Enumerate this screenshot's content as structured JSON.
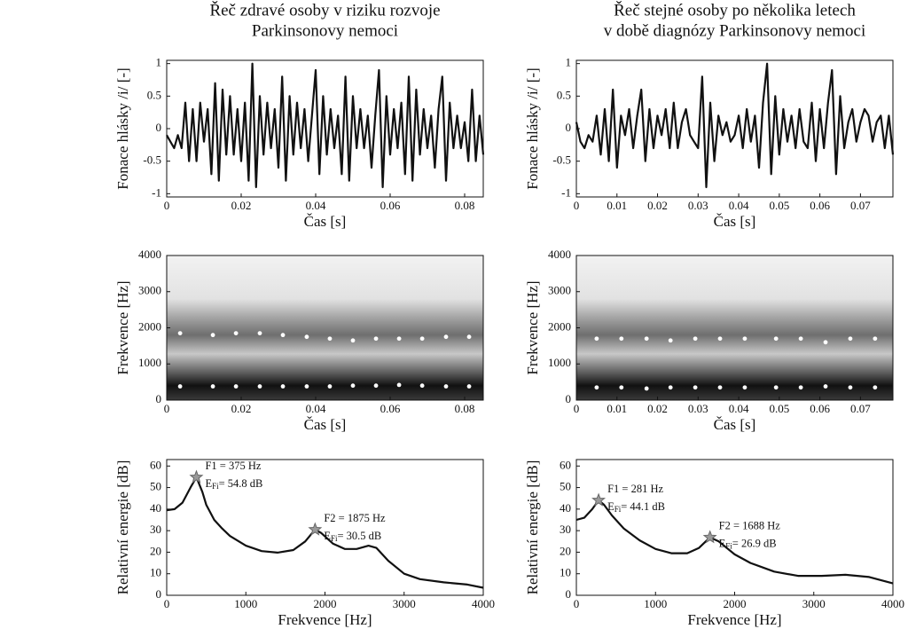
{
  "chart_data": [
    {
      "type": "line",
      "title": [
        "Řeč zdravé osoby v riziku rozvoje",
        "Parkinsonovy nemoci"
      ],
      "x_label": "Čas [s]",
      "y_label": "Fonace hlásky /i/ [-]",
      "xlim": [
        0,
        0.085
      ],
      "ylim": [
        -1.05,
        1.05
      ],
      "xticks": [
        0,
        0.02,
        0.04,
        0.06,
        0.08
      ],
      "yticks": [
        -1,
        -0.5,
        0,
        0.5,
        1
      ],
      "series": [
        {
          "color": "#111111",
          "x": [
            0,
            0.001,
            0.002,
            0.003,
            0.004,
            0.005,
            0.006,
            0.007,
            0.008,
            0.009,
            0.01,
            0.011,
            0.012,
            0.013,
            0.014,
            0.015,
            0.016,
            0.017,
            0.018,
            0.019,
            0.02,
            0.021,
            0.022,
            0.023,
            0.024,
            0.025,
            0.026,
            0.027,
            0.028,
            0.029,
            0.03,
            0.031,
            0.032,
            0.033,
            0.034,
            0.035,
            0.036,
            0.037,
            0.038,
            0.039,
            0.04,
            0.041,
            0.042,
            0.043,
            0.044,
            0.045,
            0.046,
            0.047,
            0.048,
            0.049,
            0.05,
            0.051,
            0.052,
            0.053,
            0.054,
            0.055,
            0.056,
            0.057,
            0.058,
            0.059,
            0.06,
            0.061,
            0.062,
            0.063,
            0.064,
            0.065,
            0.066,
            0.067,
            0.068,
            0.069,
            0.07,
            0.071,
            0.072,
            0.073,
            0.074,
            0.075,
            0.076,
            0.077,
            0.078,
            0.079,
            0.08,
            0.081,
            0.082,
            0.083,
            0.084,
            0.085
          ],
          "values": [
            -0.1,
            -0.2,
            -0.3,
            -0.1,
            -0.3,
            0.4,
            -0.5,
            0.3,
            -0.5,
            0.4,
            -0.2,
            0.3,
            -0.7,
            0.7,
            -0.8,
            0.6,
            -0.4,
            0.5,
            -0.4,
            0.3,
            -0.5,
            0.4,
            -0.8,
            1.0,
            -0.9,
            0.5,
            -0.4,
            0.4,
            -0.3,
            0.3,
            -0.6,
            0.8,
            -0.8,
            0.5,
            -0.4,
            0.4,
            -0.3,
            0.3,
            -0.5,
            0.2,
            0.9,
            -0.7,
            0.5,
            -0.4,
            0.3,
            -0.3,
            0.2,
            -0.7,
            0.8,
            -0.8,
            0.5,
            -0.3,
            0.3,
            -0.3,
            0.2,
            -0.6,
            0.2,
            0.9,
            -0.9,
            0.5,
            -0.4,
            0.3,
            -0.3,
            0.4,
            -0.7,
            0.8,
            -0.8,
            0.6,
            -0.4,
            0.3,
            -0.3,
            0.2,
            -0.6,
            0.3,
            0.8,
            -0.8,
            0.4,
            -0.3,
            0.2,
            -0.3,
            0.1,
            -0.5,
            0.6,
            -0.5,
            0.2,
            -0.4
          ]
        }
      ]
    },
    {
      "type": "line",
      "title": [
        "Řeč stejné osoby po několika letech",
        "v době diagnózy Parkinsonovy nemoci"
      ],
      "x_label": "Čas [s]",
      "y_label": "Fonace hlásky /i/ [-]",
      "xlim": [
        0,
        0.078
      ],
      "ylim": [
        -1.05,
        1.05
      ],
      "xticks": [
        0,
        0.01,
        0.02,
        0.03,
        0.04,
        0.05,
        0.06,
        0.07
      ],
      "yticks": [
        -1,
        -0.5,
        0,
        0.5,
        1
      ],
      "series": [
        {
          "color": "#111111",
          "x": [
            0,
            0.001,
            0.002,
            0.003,
            0.004,
            0.005,
            0.006,
            0.007,
            0.008,
            0.009,
            0.01,
            0.011,
            0.012,
            0.013,
            0.014,
            0.015,
            0.016,
            0.017,
            0.018,
            0.019,
            0.02,
            0.021,
            0.022,
            0.023,
            0.024,
            0.025,
            0.026,
            0.027,
            0.028,
            0.029,
            0.03,
            0.031,
            0.032,
            0.033,
            0.034,
            0.035,
            0.036,
            0.037,
            0.038,
            0.039,
            0.04,
            0.041,
            0.042,
            0.043,
            0.044,
            0.045,
            0.046,
            0.047,
            0.048,
            0.049,
            0.05,
            0.051,
            0.052,
            0.053,
            0.054,
            0.055,
            0.056,
            0.057,
            0.058,
            0.059,
            0.06,
            0.061,
            0.062,
            0.063,
            0.064,
            0.065,
            0.066,
            0.067,
            0.068,
            0.069,
            0.07,
            0.071,
            0.072,
            0.073,
            0.074,
            0.075,
            0.076,
            0.077,
            0.078
          ],
          "values": [
            0.1,
            -0.2,
            -0.3,
            -0.1,
            -0.2,
            0.2,
            -0.4,
            0.3,
            -0.5,
            0.6,
            -0.6,
            0.2,
            -0.1,
            0.3,
            -0.3,
            0.2,
            0.6,
            -0.5,
            0.3,
            -0.3,
            0.2,
            -0.1,
            0.3,
            -0.3,
            0.4,
            -0.3,
            0.1,
            0.3,
            -0.1,
            -0.2,
            -0.3,
            0.8,
            -0.9,
            0.4,
            -0.5,
            0.2,
            -0.1,
            0.1,
            -0.2,
            -0.1,
            0.2,
            -0.3,
            0.3,
            -0.2,
            0.2,
            -0.6,
            0.4,
            1.0,
            -0.7,
            0.5,
            -0.4,
            0.3,
            -0.2,
            0.2,
            -0.3,
            0.3,
            -0.2,
            -0.3,
            0.4,
            -0.5,
            0.3,
            -0.3,
            0.4,
            0.9,
            -0.7,
            0.5,
            -0.3,
            0.1,
            0.3,
            -0.2,
            0.1,
            0.3,
            0.2,
            -0.2,
            0.1,
            0.2,
            -0.3,
            0.2,
            -0.4
          ]
        }
      ]
    },
    {
      "type": "spectrogram",
      "x_label": "Čas [s]",
      "y_label": "Frekvence [Hz]",
      "xlim": [
        0,
        0.085
      ],
      "ylim": [
        0,
        4000
      ],
      "xticks": [
        0,
        0.02,
        0.04,
        0.06,
        0.08
      ],
      "yticks": [
        0,
        1000,
        2000,
        3000,
        4000
      ],
      "series": [
        {
          "color": "#ffffff",
          "x": [
            0.0036,
            0.0124,
            0.0186,
            0.025,
            0.0312,
            0.0376,
            0.0438,
            0.05,
            0.0562,
            0.0624,
            0.0686,
            0.075,
            0.0812
          ],
          "values": [
            380,
            380,
            380,
            380,
            380,
            380,
            380,
            400,
            400,
            420,
            400,
            380,
            380
          ]
        },
        {
          "color": "#ffffff",
          "x": [
            0.0036,
            0.0124,
            0.0186,
            0.025,
            0.0312,
            0.0376,
            0.0438,
            0.05,
            0.0562,
            0.0624,
            0.0686,
            0.075,
            0.0812
          ],
          "values": [
            1850,
            1800,
            1850,
            1850,
            1800,
            1750,
            1700,
            1650,
            1700,
            1700,
            1700,
            1750,
            1750
          ]
        }
      ]
    },
    {
      "type": "spectrogram",
      "x_label": "Čas [s]",
      "y_label": "Frekvence [Hz]",
      "xlim": [
        0,
        0.078
      ],
      "ylim": [
        0,
        4000
      ],
      "xticks": [
        0,
        0.01,
        0.02,
        0.03,
        0.04,
        0.05,
        0.06,
        0.07
      ],
      "yticks": [
        0,
        1000,
        2000,
        3000,
        4000
      ],
      "series": [
        {
          "color": "#ffffff",
          "x": [
            0.005,
            0.0111,
            0.0173,
            0.0232,
            0.0293,
            0.0354,
            0.0415,
            0.0492,
            0.0553,
            0.0614,
            0.0675,
            0.0736
          ],
          "values": [
            350,
            350,
            320,
            350,
            350,
            350,
            350,
            350,
            350,
            380,
            350,
            350
          ]
        },
        {
          "color": "#ffffff",
          "x": [
            0.005,
            0.0111,
            0.0173,
            0.0232,
            0.0293,
            0.0354,
            0.0415,
            0.0492,
            0.0553,
            0.0614,
            0.0675,
            0.0736
          ],
          "values": [
            1700,
            1700,
            1700,
            1650,
            1700,
            1700,
            1700,
            1700,
            1700,
            1600,
            1700,
            1700
          ]
        }
      ]
    },
    {
      "type": "line",
      "x_label": "Frekvence [Hz]",
      "y_label": "Relativní energie [dB]",
      "xlim": [
        0,
        4000
      ],
      "ylim": [
        0,
        63
      ],
      "xticks": [
        0,
        1000,
        2000,
        3000,
        4000
      ],
      "yticks": [
        0,
        10,
        20,
        30,
        40,
        50,
        60
      ],
      "series": [
        {
          "color": "#111111",
          "x": [
            0,
            100,
            200,
            300,
            375,
            450,
            500,
            600,
            700,
            800,
            1000,
            1200,
            1400,
            1600,
            1750,
            1875,
            1950,
            2100,
            2250,
            2400,
            2550,
            2650,
            2800,
            3000,
            3200,
            3500,
            3800,
            4000
          ],
          "values": [
            39.5,
            40,
            43,
            50,
            54.8,
            48,
            42,
            35,
            31,
            27.5,
            23,
            20.5,
            19.8,
            21,
            25,
            30.5,
            29,
            24,
            21.5,
            21.5,
            23,
            22,
            16,
            10,
            7.5,
            6,
            5,
            3.5
          ]
        }
      ],
      "peaks": {
        "x": [
          375,
          1875
        ],
        "values": [
          54.8,
          30.5
        ]
      },
      "annotations": [
        {
          "f": "F1 = 375 Hz",
          "e": "E",
          "sub": "Fi",
          "rest": "= 54.8 dB"
        },
        {
          "f": "F2 = 1875 Hz",
          "e": "E",
          "sub": "Fi",
          "rest": "= 30.5 dB"
        }
      ]
    },
    {
      "type": "line",
      "x_label": "Frekvence [Hz]",
      "y_label": "Relativní energie [dB]",
      "xlim": [
        0,
        4000
      ],
      "ylim": [
        0,
        63
      ],
      "xticks": [
        0,
        1000,
        2000,
        3000,
        4000
      ],
      "yticks": [
        0,
        10,
        20,
        30,
        40,
        50,
        60
      ],
      "series": [
        {
          "color": "#111111",
          "x": [
            0,
            100,
            200,
            281,
            350,
            450,
            600,
            800,
            1000,
            1200,
            1400,
            1550,
            1688,
            1800,
            2000,
            2200,
            2500,
            2800,
            3100,
            3400,
            3700,
            4000
          ],
          "values": [
            35,
            36,
            40,
            44.1,
            42,
            37,
            31,
            25.5,
            21.5,
            19.5,
            19.5,
            22,
            26.9,
            25,
            19,
            15,
            11,
            9,
            9,
            9.5,
            8.5,
            5.5
          ]
        }
      ],
      "peaks": {
        "x": [
          281,
          1688
        ],
        "values": [
          44.1,
          26.9
        ]
      },
      "annotations": [
        {
          "f": "F1 = 281 Hz",
          "e": "E",
          "sub": "Fi",
          "rest": "= 44.1 dB"
        },
        {
          "f": "F2 = 1688 Hz",
          "e": "E",
          "sub": "Fi",
          "rest": "= 26.9 dB"
        }
      ]
    }
  ]
}
